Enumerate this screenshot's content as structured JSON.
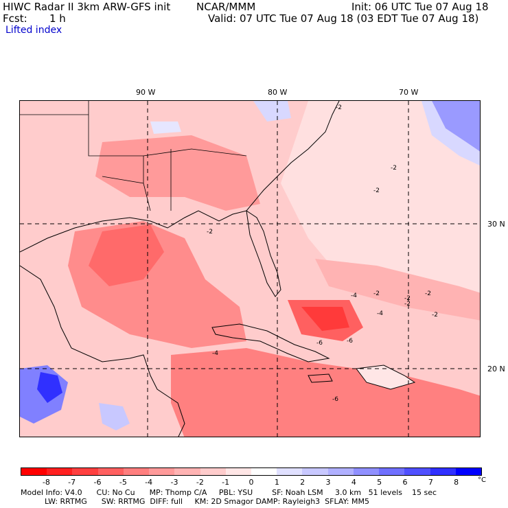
{
  "header": {
    "title_left": "HIWC Radar II 3km ARW-GFS init",
    "org": "NCAR/MMM",
    "init": "Init: 06 UTC Tue 07 Aug 18",
    "fcst_label": "Fcst:",
    "fcst_value": "1 h",
    "valid": "Valid: 07 UTC Tue 07 Aug 18 (03 EDT Tue 07 Aug 18)",
    "field": "Lifted index"
  },
  "map": {
    "lon_labels": [
      "90 W",
      "80 W",
      "70 W"
    ],
    "lat_labels": [
      "30 N",
      "20 N"
    ],
    "contour_labels": [
      "-2",
      "-2",
      "-2",
      "-2",
      "-2",
      "-2",
      "-2",
      "-4",
      "-4",
      "-6",
      "-6",
      "-6",
      "-2",
      "-2",
      "-4"
    ]
  },
  "colorbar": {
    "tick_labels": [
      "-8",
      "-7",
      "-6",
      "-5",
      "-4",
      "-3",
      "-2",
      "-1",
      "0",
      "1",
      "2",
      "3",
      "4",
      "5",
      "6",
      "7",
      "8"
    ],
    "unit": "°C",
    "colors": [
      "#ff0000",
      "#ff2020",
      "#ff4040",
      "#ff6060",
      "#ff7f7f",
      "#ff9a9a",
      "#ffb3b3",
      "#ffcccc",
      "#ffe6e6",
      "#ffffff",
      "#e0e0ff",
      "#c8c8ff",
      "#b0b0ff",
      "#9090ff",
      "#7070ff",
      "#5050ff",
      "#3030ff",
      "#0000ff"
    ]
  },
  "model_info": {
    "line1": "Model Info: V4.0      CU: No Cu      MP: Thomp C/A     PBL: YSU        SF: Noah LSM     3.0 km   51 levels    15 sec",
    "line2": "          LW: RRTMG      SW: RRTMG  DIFF: full     KM: 2D Smagor DAMP: Rayleigh3  SFLAY: MM5"
  }
}
